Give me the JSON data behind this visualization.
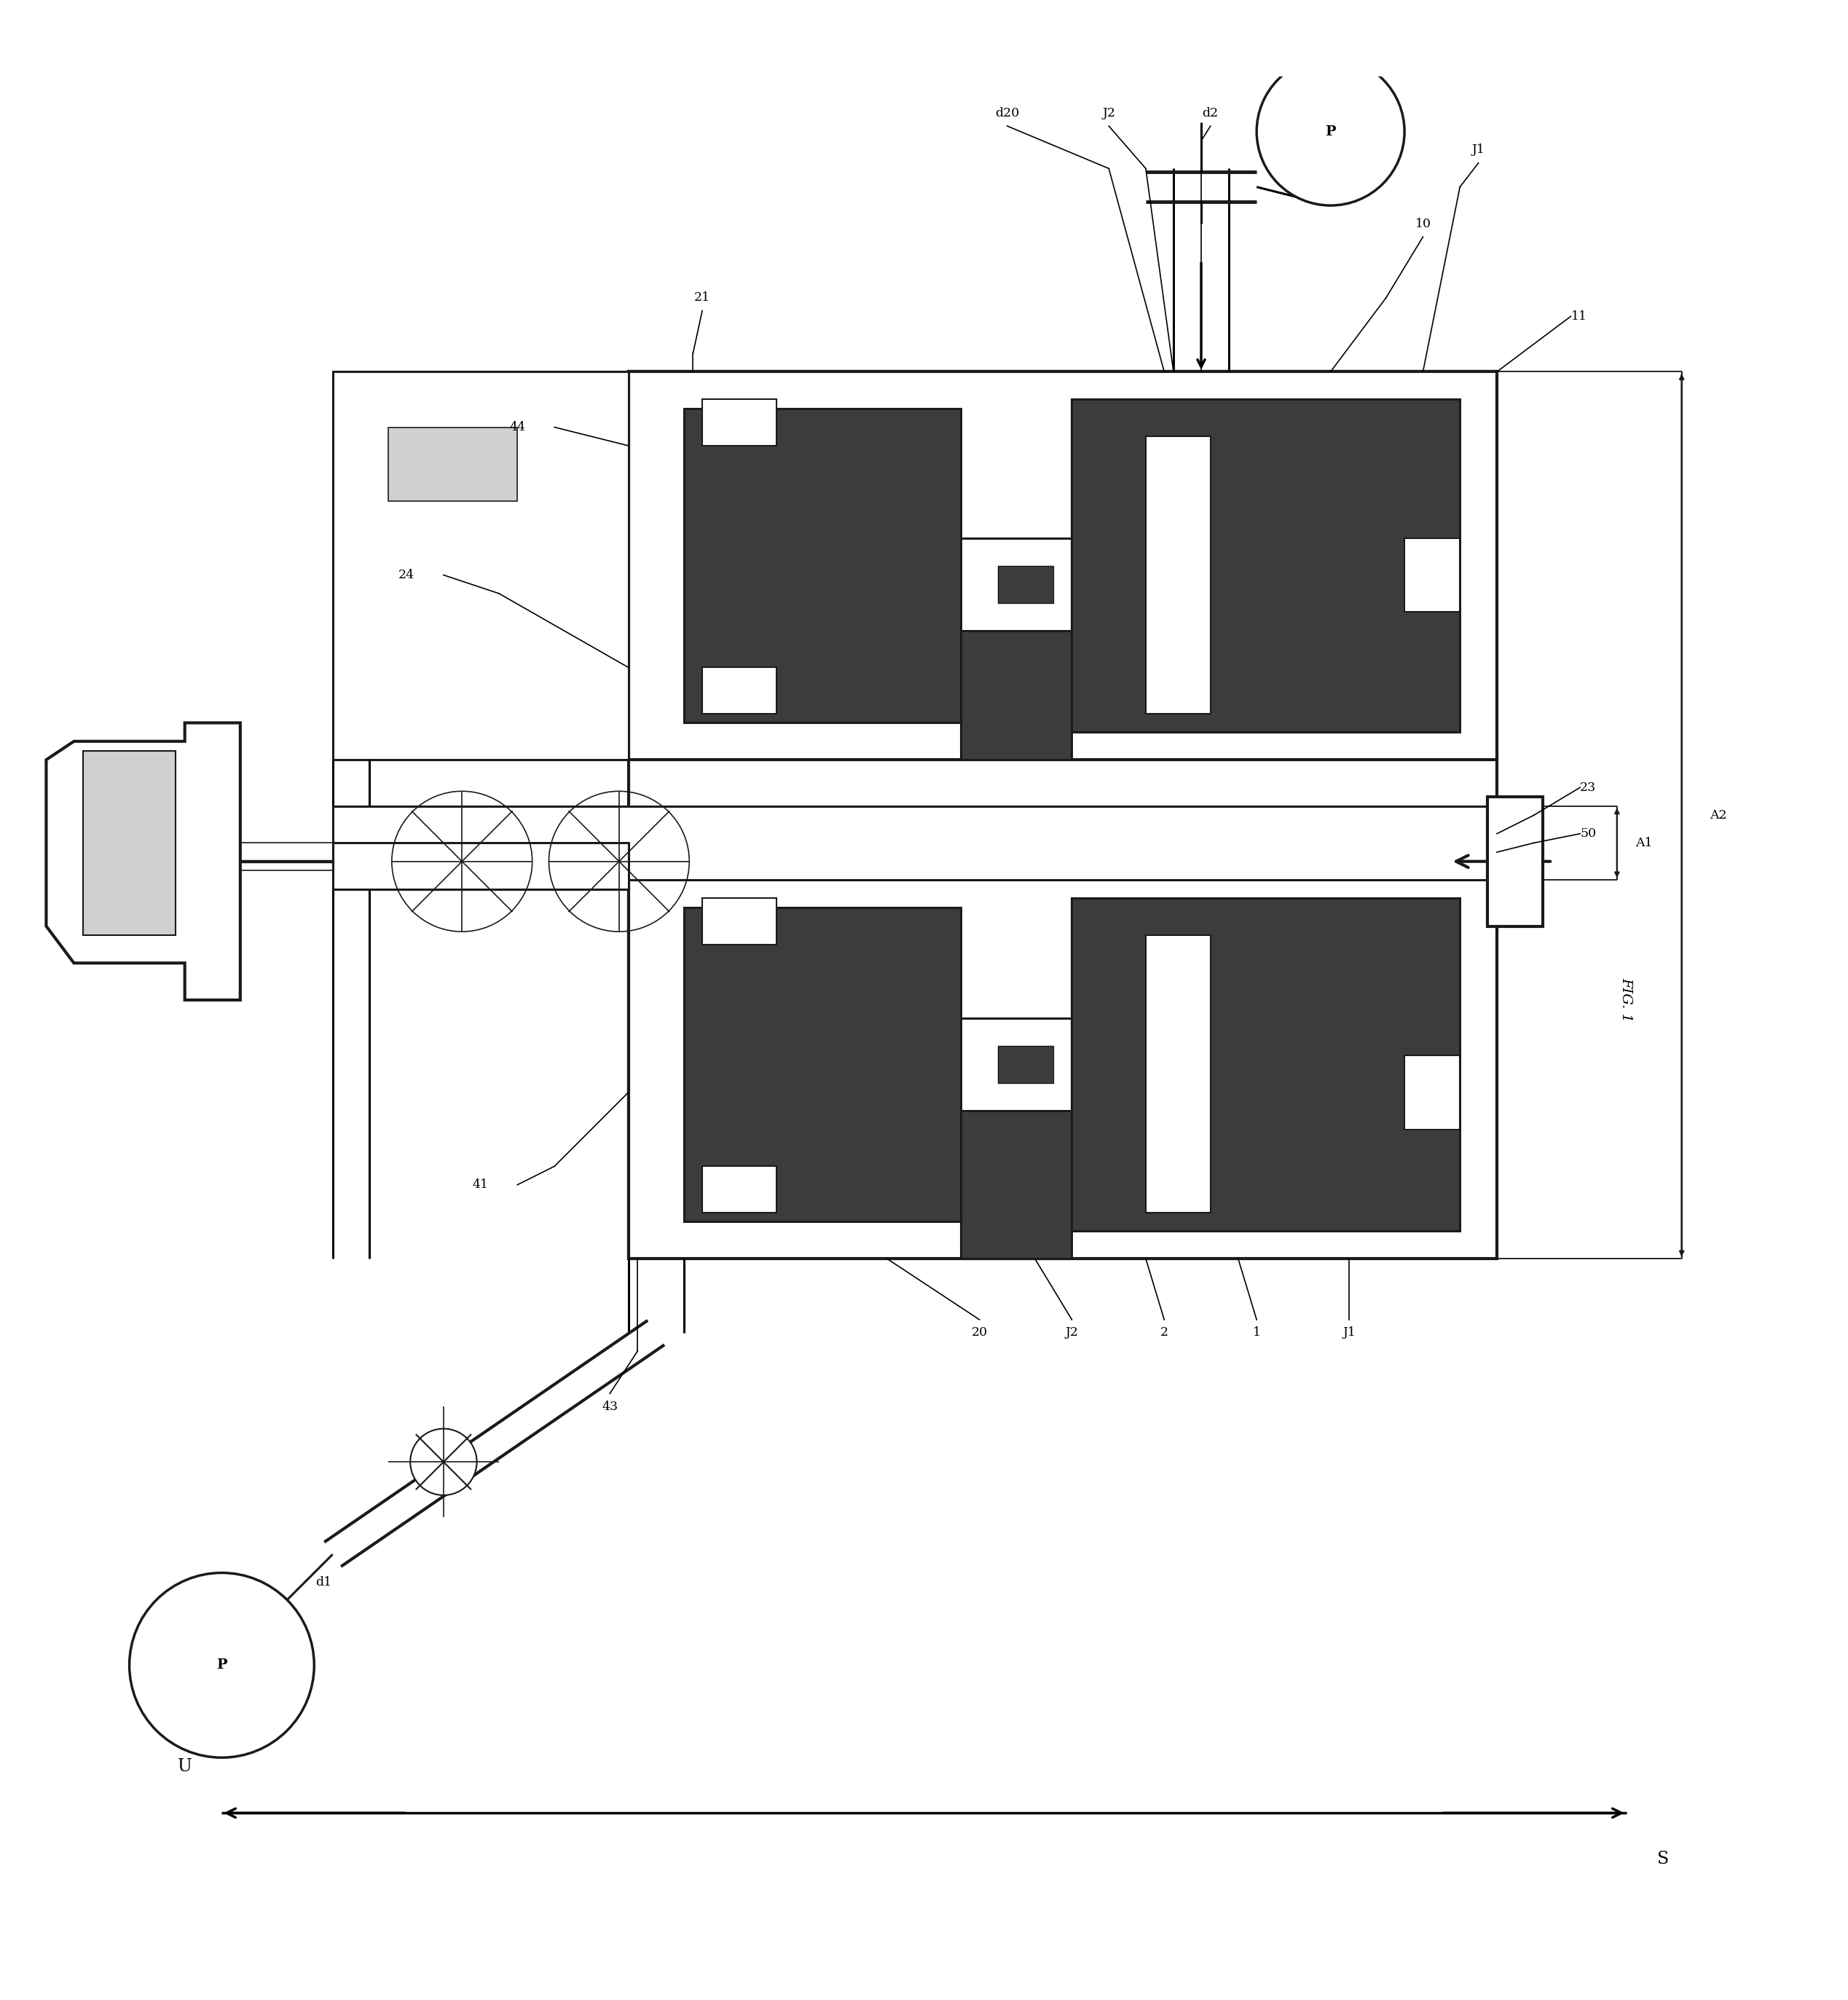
{
  "fig_label": "FIG. 1",
  "bg_color": "#ffffff",
  "line_color": "#1a1a1a",
  "dark_fill": "#3c3c3c",
  "mid_fill": "#808080",
  "light_fill": "#d0d0d0",
  "white": "#ffffff",
  "labels": {
    "J1_top": "J1",
    "J2_top": "J2",
    "d2_top": "d2",
    "d20_top": "d20",
    "P_top": "P",
    "10": "10",
    "11": "11",
    "21": "21",
    "44": "44",
    "24": "24",
    "23": "23",
    "50": "50",
    "A1": "A1",
    "A2": "A2",
    "20_bot": "20",
    "J2_bot": "J2",
    "2_bot": "2",
    "1_bot": "1",
    "J1_bot": "J1",
    "43": "43",
    "41": "41",
    "d1": "d1",
    "P_bot": "P",
    "U": "U",
    "S": "S"
  }
}
